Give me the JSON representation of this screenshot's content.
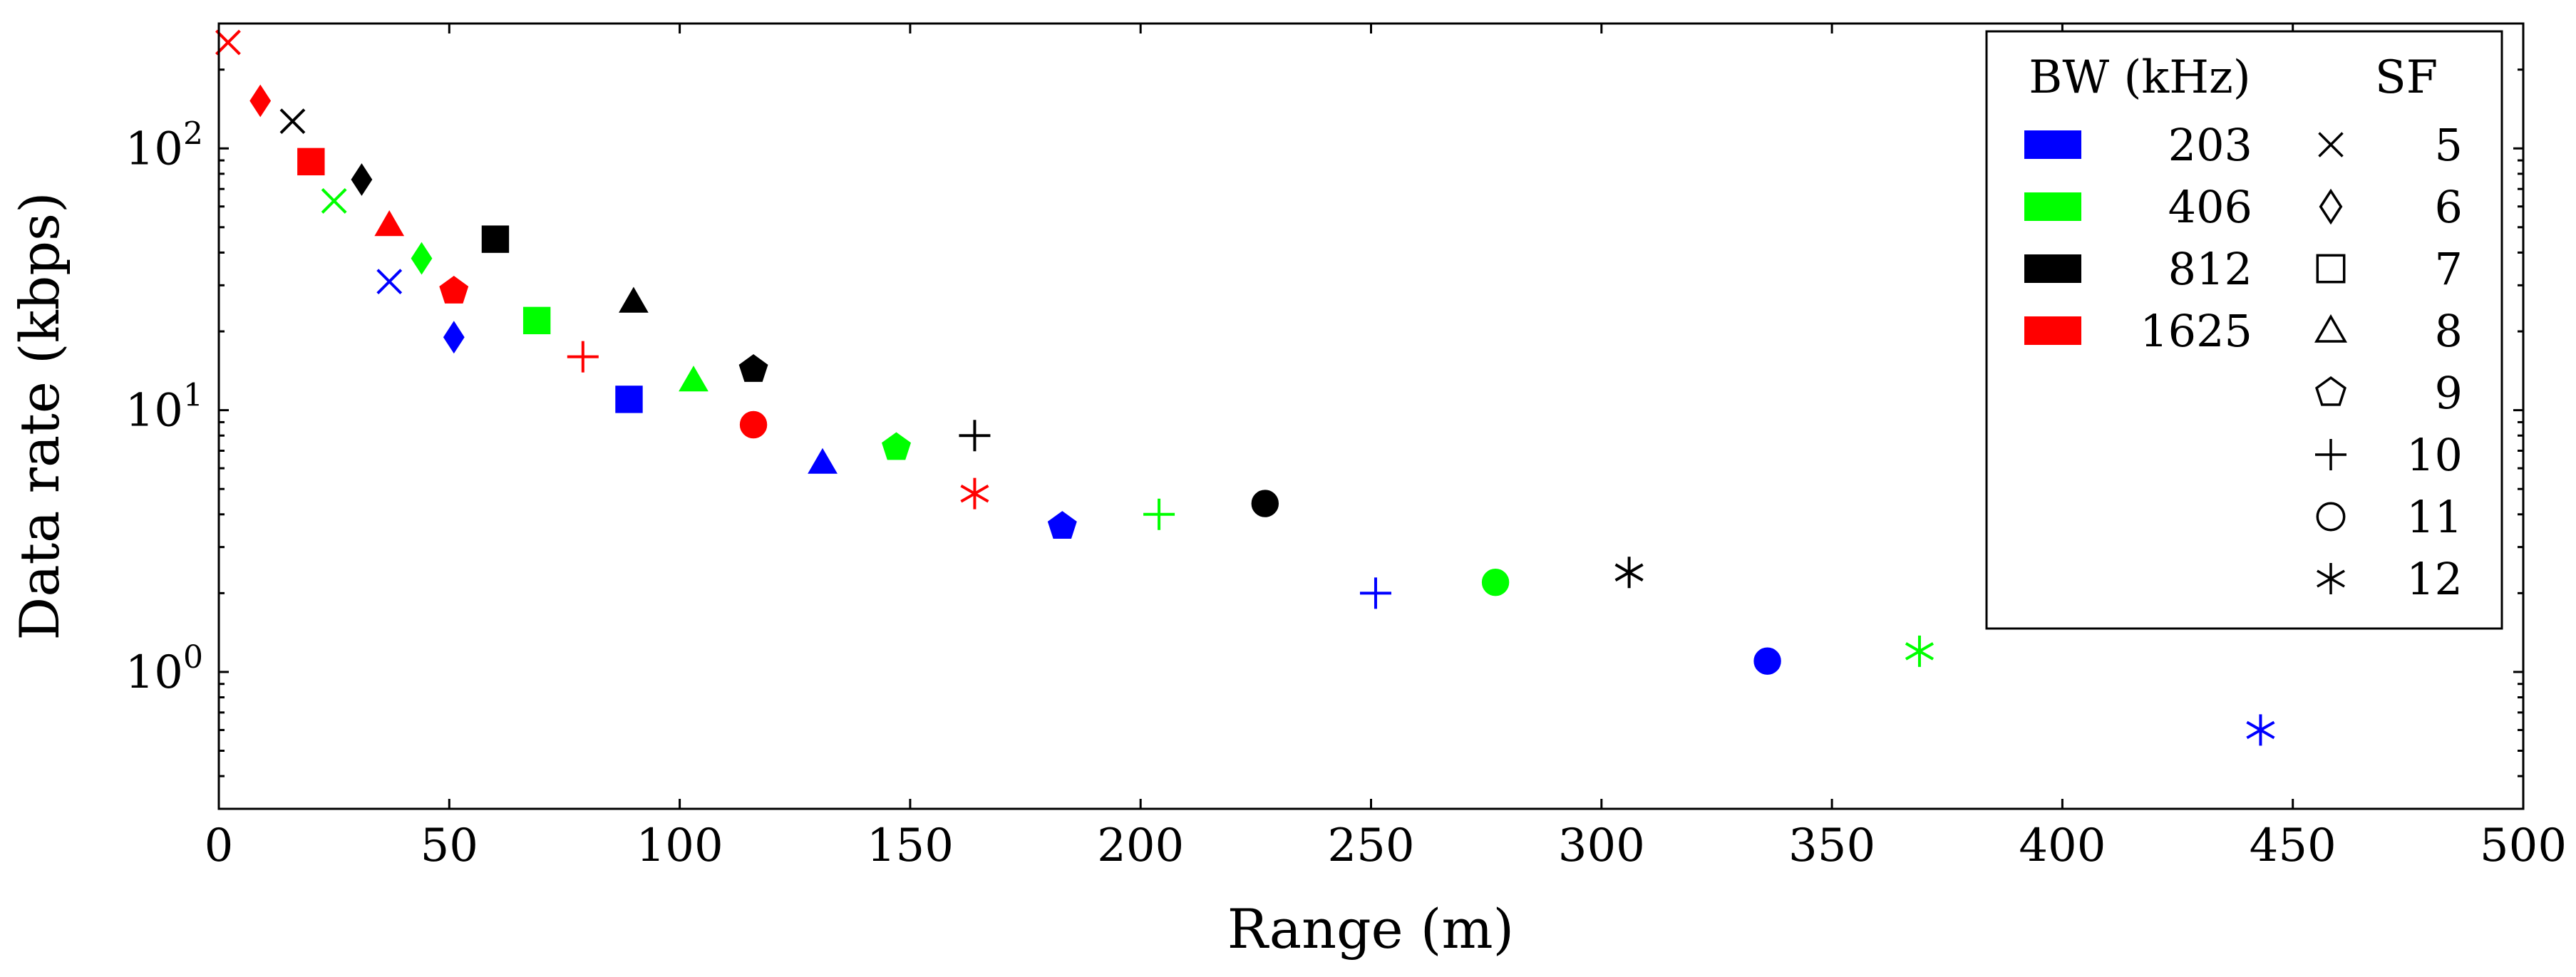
{
  "chart_data": {
    "type": "scatter",
    "title": "",
    "xlabel": "Range (m)",
    "ylabel": "Data rate (kbps)",
    "xlim": [
      0,
      500
    ],
    "ylim": [
      0.3,
      300
    ],
    "yscale": "log",
    "grid": false,
    "x_ticks": [
      "0",
      "50",
      "100",
      "150",
      "200",
      "250",
      "300",
      "350",
      "400",
      "450",
      "500"
    ],
    "y_ticks": [
      {
        "base": "10",
        "exp": "0",
        "value": 1
      },
      {
        "base": "10",
        "exp": "1",
        "value": 10
      },
      {
        "base": "10",
        "exp": "2",
        "value": 100
      }
    ],
    "legend": {
      "position": "top-right",
      "bw_header": "BW (kHz)",
      "sf_header": "SF",
      "bw_entries": [
        {
          "label": "203",
          "color": "#0000ff"
        },
        {
          "label": "406",
          "color": "#00ff00"
        },
        {
          "label": "812",
          "color": "#000000"
        },
        {
          "label": "1625",
          "color": "#ff0000"
        }
      ],
      "sf_entries": [
        {
          "label": "5",
          "marker": "cross"
        },
        {
          "label": "6",
          "marker": "diamond"
        },
        {
          "label": "7",
          "marker": "square"
        },
        {
          "label": "8",
          "marker": "triangle"
        },
        {
          "label": "9",
          "marker": "pentagon"
        },
        {
          "label": "10",
          "marker": "plus"
        },
        {
          "label": "11",
          "marker": "circle"
        },
        {
          "label": "12",
          "marker": "asterisk"
        }
      ]
    },
    "series": [
      {
        "name": "203",
        "color": "#0000ff",
        "points": [
          {
            "sf": 5,
            "x": 37,
            "y": 31
          },
          {
            "sf": 6,
            "x": 51,
            "y": 19
          },
          {
            "sf": 7,
            "x": 89,
            "y": 11
          },
          {
            "sf": 8,
            "x": 131,
            "y": 6.3
          },
          {
            "sf": 9,
            "x": 183,
            "y": 3.6
          },
          {
            "sf": 10,
            "x": 251,
            "y": 2.0
          },
          {
            "sf": 11,
            "x": 336,
            "y": 1.1
          },
          {
            "sf": 12,
            "x": 443,
            "y": 0.6
          }
        ]
      },
      {
        "name": "406",
        "color": "#00ff00",
        "points": [
          {
            "sf": 5,
            "x": 25,
            "y": 63
          },
          {
            "sf": 6,
            "x": 44,
            "y": 38
          },
          {
            "sf": 7,
            "x": 69,
            "y": 22
          },
          {
            "sf": 8,
            "x": 103,
            "y": 13
          },
          {
            "sf": 9,
            "x": 147,
            "y": 7.2
          },
          {
            "sf": 10,
            "x": 204,
            "y": 4.0
          },
          {
            "sf": 11,
            "x": 277,
            "y": 2.2
          },
          {
            "sf": 12,
            "x": 369,
            "y": 1.2
          }
        ]
      },
      {
        "name": "812",
        "color": "#000000",
        "points": [
          {
            "sf": 5,
            "x": 16,
            "y": 127
          },
          {
            "sf": 6,
            "x": 31,
            "y": 76
          },
          {
            "sf": 7,
            "x": 60,
            "y": 45
          },
          {
            "sf": 8,
            "x": 90,
            "y": 26
          },
          {
            "sf": 9,
            "x": 116,
            "y": 14.3
          },
          {
            "sf": 10,
            "x": 164,
            "y": 8.0
          },
          {
            "sf": 11,
            "x": 227,
            "y": 4.4
          },
          {
            "sf": 12,
            "x": 306,
            "y": 2.4
          }
        ]
      },
      {
        "name": "1625",
        "color": "#ff0000",
        "points": [
          {
            "sf": 5,
            "x": 2,
            "y": 254
          },
          {
            "sf": 6,
            "x": 9,
            "y": 152
          },
          {
            "sf": 7,
            "x": 20,
            "y": 89
          },
          {
            "sf": 8,
            "x": 37,
            "y": 51
          },
          {
            "sf": 9,
            "x": 51,
            "y": 28.5
          },
          {
            "sf": 10,
            "x": 79,
            "y": 16
          },
          {
            "sf": 11,
            "x": 116,
            "y": 8.8
          },
          {
            "sf": 12,
            "x": 164,
            "y": 4.8
          }
        ]
      }
    ]
  }
}
